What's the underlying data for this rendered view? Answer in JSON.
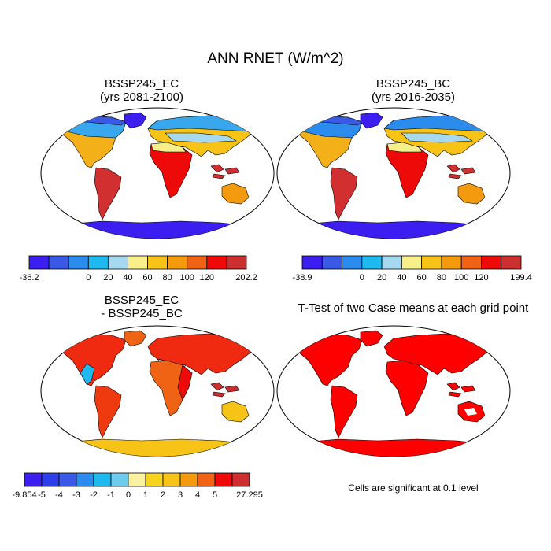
{
  "title": "ANN RNET (W/m^2)",
  "panels": [
    {
      "id": "ec",
      "title": "BSSP245_EC",
      "subtitle": "(yrs 2081-2100)"
    },
    {
      "id": "bc",
      "title": "BSSP245_BC",
      "subtitle": "(yrs 2016-2035)"
    },
    {
      "id": "diff",
      "title": "BSSP245_EC",
      "subtitle": "- BSSP245_BC"
    },
    {
      "id": "ttest",
      "title": "T-Test of two Case means at each grid point",
      "subtitle": ""
    }
  ],
  "colorbars": [
    {
      "id": "ec-colorbar",
      "colors": [
        "#3c1ef0",
        "#3a5ae6",
        "#2c8cee",
        "#1fb8ef",
        "#a6d8ef",
        "#f7f08a",
        "#f7c316",
        "#f49a0e",
        "#f06214",
        "#ef0a0a",
        "#cb2f2f"
      ],
      "labels": [
        "-36.2",
        "0",
        "20",
        "40",
        "60",
        "80",
        "100",
        "120",
        "202.2"
      ]
    },
    {
      "id": "bc-colorbar",
      "colors": [
        "#3c1ef0",
        "#3a5ae6",
        "#2c8cee",
        "#1fb8ef",
        "#a6d8ef",
        "#f7f08a",
        "#f7c316",
        "#f49a0e",
        "#f06214",
        "#ef0a0a",
        "#cb2f2f"
      ],
      "labels": [
        "-38.9",
        "0",
        "20",
        "40",
        "60",
        "80",
        "100",
        "120",
        "199.4"
      ]
    },
    {
      "id": "diff-colorbar",
      "colors": [
        "#3c1ef0",
        "#2f3fe8",
        "#3a5ae6",
        "#2c8cee",
        "#1fb8ef",
        "#6ccbef",
        "#f9f2a0",
        "#f7d31c",
        "#f7c316",
        "#f49a0e",
        "#f06214",
        "#ef0a0a",
        "#cb2f2f"
      ],
      "labels": [
        "-9.854",
        "-5",
        "-4",
        "-3",
        "-2",
        "-1",
        "0",
        "1",
        "2",
        "3",
        "4",
        "5",
        "27.295"
      ]
    }
  ],
  "footnote": "Cells are significant at 0.1 level"
}
